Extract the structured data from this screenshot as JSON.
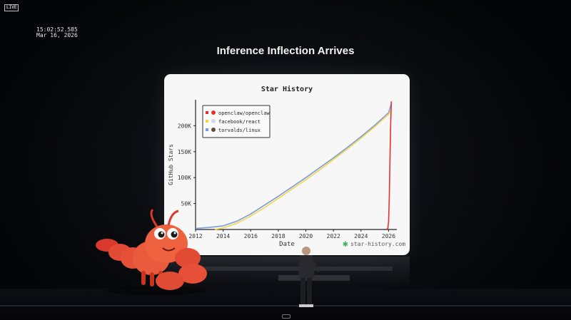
{
  "overlay": {
    "live_label": "LIVE",
    "time": "15:02:52.585",
    "date": "Mar 16, 2026"
  },
  "slide": {
    "title": "Inference Inflection Arrives"
  },
  "watermark": "star-history.com",
  "chart_data": {
    "type": "line",
    "title": "Star History",
    "xlabel": "Date",
    "ylabel": "GitHub Stars",
    "xlim": [
      2012,
      2026.6
    ],
    "ylim": [
      0,
      250000
    ],
    "x_ticks": [
      2012,
      2014,
      2016,
      2018,
      2020,
      2022,
      2024,
      2026
    ],
    "x_tick_labels": [
      "2012",
      "2014",
      "2016",
      "2018",
      "2020",
      "2022",
      "2024",
      "2026"
    ],
    "y_ticks": [
      50000,
      100000,
      150000,
      200000
    ],
    "y_tick_labels": [
      "50K",
      "100K",
      "150K",
      "200K"
    ],
    "legend_position": "top-left",
    "grid": false,
    "series": [
      {
        "name": "openclaw/openclaw",
        "color": "#e8302e",
        "x": [
          2025.85,
          2025.95,
          2026.0,
          2026.05,
          2026.1,
          2026.15,
          2026.2
        ],
        "y": [
          0,
          2000,
          15000,
          60000,
          130000,
          200000,
          247000
        ]
      },
      {
        "name": "facebook/react",
        "color": "#f2d64a",
        "x": [
          2013.4,
          2014.0,
          2015.0,
          2016.0,
          2017.0,
          2018.0,
          2019.0,
          2020.0,
          2021.0,
          2022.0,
          2023.0,
          2024.0,
          2025.0,
          2026.0,
          2026.2
        ],
        "y": [
          0,
          3000,
          12000,
          26000,
          42000,
          60000,
          78000,
          96000,
          115000,
          135000,
          155000,
          176000,
          198000,
          222000,
          230000
        ]
      },
      {
        "name": "torvalds/linux",
        "color": "#7a9be0",
        "x": [
          2012.0,
          2013.0,
          2014.0,
          2015.0,
          2016.0,
          2017.0,
          2018.0,
          2019.0,
          2020.0,
          2021.0,
          2022.0,
          2023.0,
          2024.0,
          2025.0,
          2026.0,
          2026.2
        ],
        "y": [
          2000,
          4000,
          7000,
          16000,
          30000,
          47000,
          64000,
          82000,
          100000,
          119000,
          138000,
          158000,
          179000,
          201000,
          225000,
          243000
        ]
      }
    ]
  }
}
